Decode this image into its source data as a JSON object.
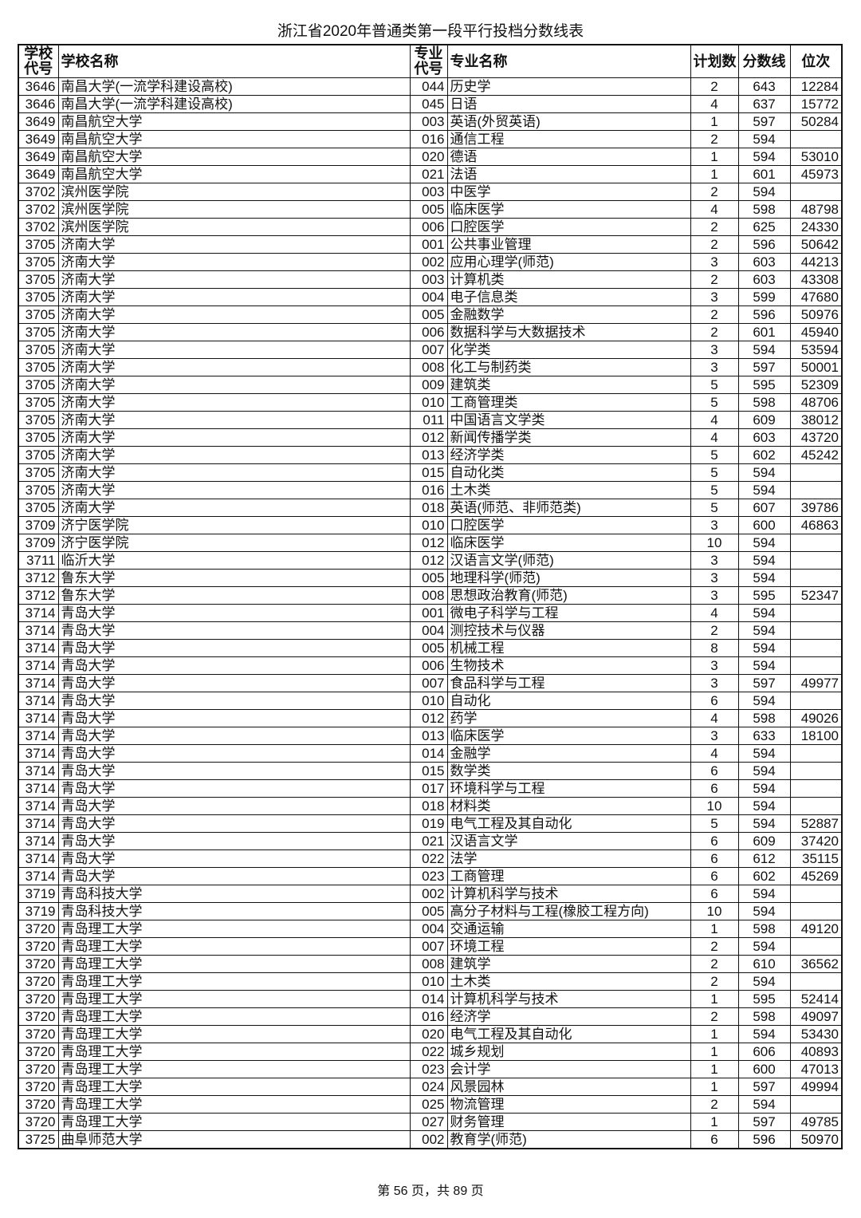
{
  "title": "浙江省2020年普通类第一段平行投档分数线表",
  "headers": [
    "学校\n代号",
    "学校名称",
    "专业\n代号",
    "专业名称",
    "计划数",
    "分数线",
    "位次"
  ],
  "header_lines": {
    "school_code": [
      "学校",
      "代号"
    ],
    "major_code": [
      "专业",
      "代号"
    ]
  },
  "rows": [
    [
      "3646",
      "南昌大学(一流学科建设高校)",
      "044",
      "历史学",
      "2",
      "643",
      "12284"
    ],
    [
      "3646",
      "南昌大学(一流学科建设高校)",
      "045",
      "日语",
      "4",
      "637",
      "15772"
    ],
    [
      "3649",
      "南昌航空大学",
      "003",
      "英语(外贸英语)",
      "1",
      "597",
      "50284"
    ],
    [
      "3649",
      "南昌航空大学",
      "016",
      "通信工程",
      "2",
      "594",
      ""
    ],
    [
      "3649",
      "南昌航空大学",
      "020",
      "德语",
      "1",
      "594",
      "53010"
    ],
    [
      "3649",
      "南昌航空大学",
      "021",
      "法语",
      "1",
      "601",
      "45973"
    ],
    [
      "3702",
      "滨州医学院",
      "003",
      "中医学",
      "2",
      "594",
      ""
    ],
    [
      "3702",
      "滨州医学院",
      "005",
      "临床医学",
      "4",
      "598",
      "48798"
    ],
    [
      "3702",
      "滨州医学院",
      "006",
      "口腔医学",
      "2",
      "625",
      "24330"
    ],
    [
      "3705",
      "济南大学",
      "001",
      "公共事业管理",
      "2",
      "596",
      "50642"
    ],
    [
      "3705",
      "济南大学",
      "002",
      "应用心理学(师范)",
      "3",
      "603",
      "44213"
    ],
    [
      "3705",
      "济南大学",
      "003",
      "计算机类",
      "2",
      "603",
      "43308"
    ],
    [
      "3705",
      "济南大学",
      "004",
      "电子信息类",
      "3",
      "599",
      "47680"
    ],
    [
      "3705",
      "济南大学",
      "005",
      "金融数学",
      "2",
      "596",
      "50976"
    ],
    [
      "3705",
      "济南大学",
      "006",
      "数据科学与大数据技术",
      "2",
      "601",
      "45940"
    ],
    [
      "3705",
      "济南大学",
      "007",
      "化学类",
      "3",
      "594",
      "53594"
    ],
    [
      "3705",
      "济南大学",
      "008",
      "化工与制药类",
      "3",
      "597",
      "50001"
    ],
    [
      "3705",
      "济南大学",
      "009",
      "建筑类",
      "5",
      "595",
      "52309"
    ],
    [
      "3705",
      "济南大学",
      "010",
      "工商管理类",
      "5",
      "598",
      "48706"
    ],
    [
      "3705",
      "济南大学",
      "011",
      "中国语言文学类",
      "4",
      "609",
      "38012"
    ],
    [
      "3705",
      "济南大学",
      "012",
      "新闻传播学类",
      "4",
      "603",
      "43720"
    ],
    [
      "3705",
      "济南大学",
      "013",
      "经济学类",
      "5",
      "602",
      "45242"
    ],
    [
      "3705",
      "济南大学",
      "015",
      "自动化类",
      "5",
      "594",
      ""
    ],
    [
      "3705",
      "济南大学",
      "016",
      "土木类",
      "5",
      "594",
      ""
    ],
    [
      "3705",
      "济南大学",
      "018",
      "英语(师范、非师范类)",
      "5",
      "607",
      "39786"
    ],
    [
      "3709",
      "济宁医学院",
      "010",
      "口腔医学",
      "3",
      "600",
      "46863"
    ],
    [
      "3709",
      "济宁医学院",
      "012",
      "临床医学",
      "10",
      "594",
      ""
    ],
    [
      "3711",
      "临沂大学",
      "012",
      "汉语言文学(师范)",
      "3",
      "594",
      ""
    ],
    [
      "3712",
      "鲁东大学",
      "005",
      "地理科学(师范)",
      "3",
      "594",
      ""
    ],
    [
      "3712",
      "鲁东大学",
      "008",
      "思想政治教育(师范)",
      "3",
      "595",
      "52347"
    ],
    [
      "3714",
      "青岛大学",
      "001",
      "微电子科学与工程",
      "4",
      "594",
      ""
    ],
    [
      "3714",
      "青岛大学",
      "004",
      "测控技术与仪器",
      "2",
      "594",
      ""
    ],
    [
      "3714",
      "青岛大学",
      "005",
      "机械工程",
      "8",
      "594",
      ""
    ],
    [
      "3714",
      "青岛大学",
      "006",
      "生物技术",
      "3",
      "594",
      ""
    ],
    [
      "3714",
      "青岛大学",
      "007",
      "食品科学与工程",
      "3",
      "597",
      "49977"
    ],
    [
      "3714",
      "青岛大学",
      "010",
      "自动化",
      "6",
      "594",
      ""
    ],
    [
      "3714",
      "青岛大学",
      "012",
      "药学",
      "4",
      "598",
      "49026"
    ],
    [
      "3714",
      "青岛大学",
      "013",
      "临床医学",
      "3",
      "633",
      "18100"
    ],
    [
      "3714",
      "青岛大学",
      "014",
      "金融学",
      "4",
      "594",
      ""
    ],
    [
      "3714",
      "青岛大学",
      "015",
      "数学类",
      "6",
      "594",
      ""
    ],
    [
      "3714",
      "青岛大学",
      "017",
      "环境科学与工程",
      "6",
      "594",
      ""
    ],
    [
      "3714",
      "青岛大学",
      "018",
      "材料类",
      "10",
      "594",
      ""
    ],
    [
      "3714",
      "青岛大学",
      "019",
      "电气工程及其自动化",
      "5",
      "594",
      "52887"
    ],
    [
      "3714",
      "青岛大学",
      "021",
      "汉语言文学",
      "6",
      "609",
      "37420"
    ],
    [
      "3714",
      "青岛大学",
      "022",
      "法学",
      "6",
      "612",
      "35115"
    ],
    [
      "3714",
      "青岛大学",
      "023",
      "工商管理",
      "6",
      "602",
      "45269"
    ],
    [
      "3719",
      "青岛科技大学",
      "002",
      "计算机科学与技术",
      "6",
      "594",
      ""
    ],
    [
      "3719",
      "青岛科技大学",
      "005",
      "高分子材料与工程(橡胶工程方向)",
      "10",
      "594",
      ""
    ],
    [
      "3720",
      "青岛理工大学",
      "004",
      "交通运输",
      "1",
      "598",
      "49120"
    ],
    [
      "3720",
      "青岛理工大学",
      "007",
      "环境工程",
      "2",
      "594",
      ""
    ],
    [
      "3720",
      "青岛理工大学",
      "008",
      "建筑学",
      "2",
      "610",
      "36562"
    ],
    [
      "3720",
      "青岛理工大学",
      "010",
      "土木类",
      "2",
      "594",
      ""
    ],
    [
      "3720",
      "青岛理工大学",
      "014",
      "计算机科学与技术",
      "1",
      "595",
      "52414"
    ],
    [
      "3720",
      "青岛理工大学",
      "016",
      "经济学",
      "2",
      "598",
      "49097"
    ],
    [
      "3720",
      "青岛理工大学",
      "020",
      "电气工程及其自动化",
      "1",
      "594",
      "53430"
    ],
    [
      "3720",
      "青岛理工大学",
      "022",
      "城乡规划",
      "1",
      "606",
      "40893"
    ],
    [
      "3720",
      "青岛理工大学",
      "023",
      "会计学",
      "1",
      "600",
      "47013"
    ],
    [
      "3720",
      "青岛理工大学",
      "024",
      "风景园林",
      "1",
      "597",
      "49994"
    ],
    [
      "3720",
      "青岛理工大学",
      "025",
      "物流管理",
      "2",
      "594",
      ""
    ],
    [
      "3720",
      "青岛理工大学",
      "027",
      "财务管理",
      "1",
      "597",
      "49785"
    ],
    [
      "3725",
      "曲阜师范大学",
      "002",
      "教育学(师范)",
      "6",
      "596",
      "50970"
    ]
  ],
  "footer": "第 56 页，共 89 页"
}
